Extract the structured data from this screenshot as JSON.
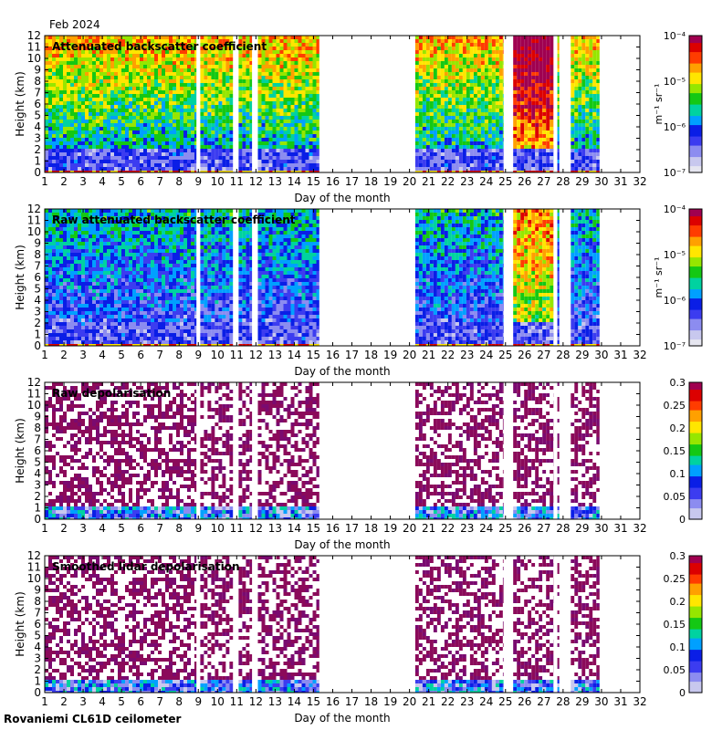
{
  "header": {
    "month_label": "Feb 2024"
  },
  "footer": {
    "station_label": "Rovaniemi CL61D ceilometer"
  },
  "chart_data": [
    {
      "type": "heatmap",
      "title": "Attenuated backscatter coefficient",
      "xlabel": "Day of the month",
      "ylabel": "Height (km)",
      "xlim": [
        1,
        32
      ],
      "ylim": [
        0,
        12
      ],
      "xticks": [
        1,
        2,
        3,
        4,
        5,
        6,
        7,
        8,
        9,
        10,
        11,
        12,
        13,
        14,
        15,
        16,
        17,
        18,
        19,
        20,
        21,
        22,
        23,
        24,
        25,
        26,
        27,
        28,
        29,
        30,
        31,
        32
      ],
      "yticks": [
        0,
        1,
        2,
        3,
        4,
        5,
        6,
        7,
        8,
        9,
        10,
        11,
        12
      ],
      "colorbar": {
        "scale": "log",
        "unit": "m⁻¹ sr⁻¹",
        "ticks": [
          "10⁻⁷",
          "10⁻⁶",
          "10⁻⁵",
          "10⁻⁴"
        ]
      },
      "data_coverage_days": [
        [
          1,
          8.9
        ],
        [
          9.1,
          10.8
        ],
        [
          11.1,
          11.8
        ],
        [
          12.1,
          15.3
        ],
        [
          20.3,
          24.9
        ],
        [
          25.4,
          27.5
        ],
        [
          27.7,
          27.8
        ],
        [
          28.4,
          29.9
        ]
      ]
    },
    {
      "type": "heatmap",
      "title": "Raw attenuated backscatter coefficient",
      "xlabel": "Day of the month",
      "ylabel": "Height (km)",
      "xlim": [
        1,
        32
      ],
      "ylim": [
        0,
        12
      ],
      "xticks": [
        1,
        2,
        3,
        4,
        5,
        6,
        7,
        8,
        9,
        10,
        11,
        12,
        13,
        14,
        15,
        16,
        17,
        18,
        19,
        20,
        21,
        22,
        23,
        24,
        25,
        26,
        27,
        28,
        29,
        30,
        31,
        32
      ],
      "yticks": [
        0,
        1,
        2,
        3,
        4,
        5,
        6,
        7,
        8,
        9,
        10,
        11,
        12
      ],
      "colorbar": {
        "scale": "log",
        "unit": "m⁻¹ sr⁻¹",
        "ticks": [
          "10⁻⁷",
          "10⁻⁶",
          "10⁻⁵",
          "10⁻⁴"
        ]
      },
      "data_coverage_days": [
        [
          1,
          8.9
        ],
        [
          9.1,
          10.8
        ],
        [
          11.1,
          11.8
        ],
        [
          12.1,
          15.3
        ],
        [
          20.3,
          24.9
        ],
        [
          25.4,
          27.5
        ],
        [
          27.7,
          27.8
        ],
        [
          28.4,
          29.9
        ]
      ]
    },
    {
      "type": "heatmap",
      "title": "Raw depolarisation",
      "xlabel": "Day of the month",
      "ylabel": "Height (km)",
      "xlim": [
        1,
        32
      ],
      "ylim": [
        0,
        12
      ],
      "xticks": [
        1,
        2,
        3,
        4,
        5,
        6,
        7,
        8,
        9,
        10,
        11,
        12,
        13,
        14,
        15,
        16,
        17,
        18,
        19,
        20,
        21,
        22,
        23,
        24,
        25,
        26,
        27,
        28,
        29,
        30,
        31,
        32
      ],
      "yticks": [
        0,
        1,
        2,
        3,
        4,
        5,
        6,
        7,
        8,
        9,
        10,
        11,
        12
      ],
      "colorbar": {
        "scale": "linear",
        "unit": "",
        "ticks": [
          "0",
          "0.05",
          "0.1",
          "0.15",
          "0.2",
          "0.25",
          "0.3"
        ]
      },
      "data_coverage_days": [
        [
          1,
          8.9
        ],
        [
          9.1,
          10.8
        ],
        [
          11.1,
          11.8
        ],
        [
          12.1,
          15.3
        ],
        [
          20.3,
          24.9
        ],
        [
          25.4,
          27.5
        ],
        [
          27.7,
          27.8
        ],
        [
          28.4,
          29.9
        ]
      ]
    },
    {
      "type": "heatmap",
      "title": "Smoothed lidar depolarisation",
      "xlabel": "Day of the month",
      "ylabel": "Height (km)",
      "xlim": [
        1,
        32
      ],
      "ylim": [
        0,
        12
      ],
      "xticks": [
        1,
        2,
        3,
        4,
        5,
        6,
        7,
        8,
        9,
        10,
        11,
        12,
        13,
        14,
        15,
        16,
        17,
        18,
        19,
        20,
        21,
        22,
        23,
        24,
        25,
        26,
        27,
        28,
        29,
        30,
        31,
        32
      ],
      "yticks": [
        0,
        1,
        2,
        3,
        4,
        5,
        6,
        7,
        8,
        9,
        10,
        11,
        12
      ],
      "colorbar": {
        "scale": "linear",
        "unit": "",
        "ticks": [
          "0",
          "0.05",
          "0.1",
          "0.15",
          "0.2",
          "0.25",
          "0.3"
        ]
      },
      "data_coverage_days": [
        [
          1,
          8.9
        ],
        [
          9.1,
          10.8
        ],
        [
          11.1,
          11.8
        ],
        [
          12.1,
          15.3
        ],
        [
          20.3,
          24.9
        ],
        [
          25.4,
          27.5
        ],
        [
          27.7,
          27.8
        ],
        [
          28.4,
          29.9
        ]
      ]
    }
  ]
}
